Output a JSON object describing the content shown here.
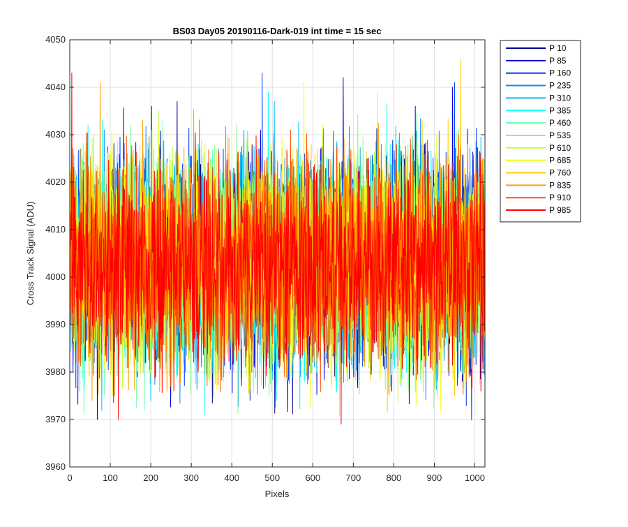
{
  "chart_data": {
    "type": "line",
    "title": "BS03 Day05 20190116-Dark-019 int time = 15 sec",
    "xlabel": "Pixels",
    "ylabel": "Cross Track Signal (ADU)",
    "xlim": [
      0,
      1025
    ],
    "ylim": [
      3960,
      4050
    ],
    "xticks": [
      0,
      100,
      200,
      300,
      400,
      500,
      600,
      700,
      800,
      900,
      1000
    ],
    "yticks": [
      3960,
      3970,
      3980,
      3990,
      4000,
      4010,
      4020,
      4030,
      4040,
      4050
    ],
    "grid": true,
    "legend_position": "outside-top-right",
    "noise_model": {
      "n_points": 1024,
      "mean": 4003,
      "typical_range": [
        3980,
        4027
      ]
    },
    "series": [
      {
        "name": "P 10",
        "color": "#00008f",
        "spikes": [
          [
            265,
            4037
          ],
          [
            60,
            3982
          ],
          [
            68,
            3970
          ]
        ]
      },
      {
        "name": "P 85",
        "color": "#0000df",
        "spikes": [
          [
            202,
            4036
          ],
          [
            675,
            4042
          ],
          [
            795,
            3976
          ],
          [
            945,
            4040
          ]
        ]
      },
      {
        "name": "P 160",
        "color": "#0040ff",
        "spikes": [
          [
            475,
            4043
          ],
          [
            950,
            4041
          ],
          [
            380,
            3979
          ]
        ]
      },
      {
        "name": "P 235",
        "color": "#0090ff",
        "spikes": [
          [
            85,
            4031
          ],
          [
            570,
            3979
          ],
          [
            285,
            3980
          ]
        ]
      },
      {
        "name": "P 310",
        "color": "#00bfff",
        "spikes": [
          [
            310,
            4030
          ],
          [
            430,
            4031
          ],
          [
            505,
            4037
          ],
          [
            200,
            3974
          ]
        ]
      },
      {
        "name": "P 385",
        "color": "#10ffef",
        "spikes": [
          [
            45,
            4032
          ],
          [
            80,
            4033
          ],
          [
            490,
            4039
          ],
          [
            25,
            3976
          ]
        ]
      },
      {
        "name": "P 460",
        "color": "#60ffaf",
        "spikes": [
          [
            35,
            3971
          ],
          [
            85,
            3975
          ],
          [
            230,
            4033
          ],
          [
            960,
            4031
          ]
        ]
      },
      {
        "name": "P 535",
        "color": "#80ff80",
        "spikes": [
          [
            150,
            4032
          ],
          [
            390,
            4030
          ],
          [
            835,
            4028
          ]
        ]
      },
      {
        "name": "P 610",
        "color": "#bfff40",
        "spikes": [
          [
            220,
            4035
          ],
          [
            760,
            4039
          ],
          [
            30,
            3982
          ]
        ]
      },
      {
        "name": "P 685",
        "color": "#efff10",
        "spikes": [
          [
            578,
            4041
          ],
          [
            855,
            3973
          ],
          [
            340,
            3979
          ]
        ]
      },
      {
        "name": "P 760",
        "color": "#ffcf00",
        "spikes": [
          [
            965,
            4046
          ],
          [
            870,
            4033
          ],
          [
            950,
            3975
          ]
        ]
      },
      {
        "name": "P 835",
        "color": "#ff9f00",
        "spikes": [
          [
            75,
            4041
          ],
          [
            180,
            4033
          ],
          [
            55,
            3974
          ],
          [
            240,
            3976
          ]
        ]
      },
      {
        "name": "P 910",
        "color": "#ff5000",
        "spikes": [
          [
            545,
            4031
          ],
          [
            960,
            4030
          ],
          [
            110,
            3975
          ]
        ]
      },
      {
        "name": "P 985",
        "color": "#ff0000",
        "spikes": [
          [
            5,
            4043
          ],
          [
            670,
            3969
          ],
          [
            120,
            3970
          ],
          [
            1015,
            3976
          ]
        ]
      }
    ]
  }
}
